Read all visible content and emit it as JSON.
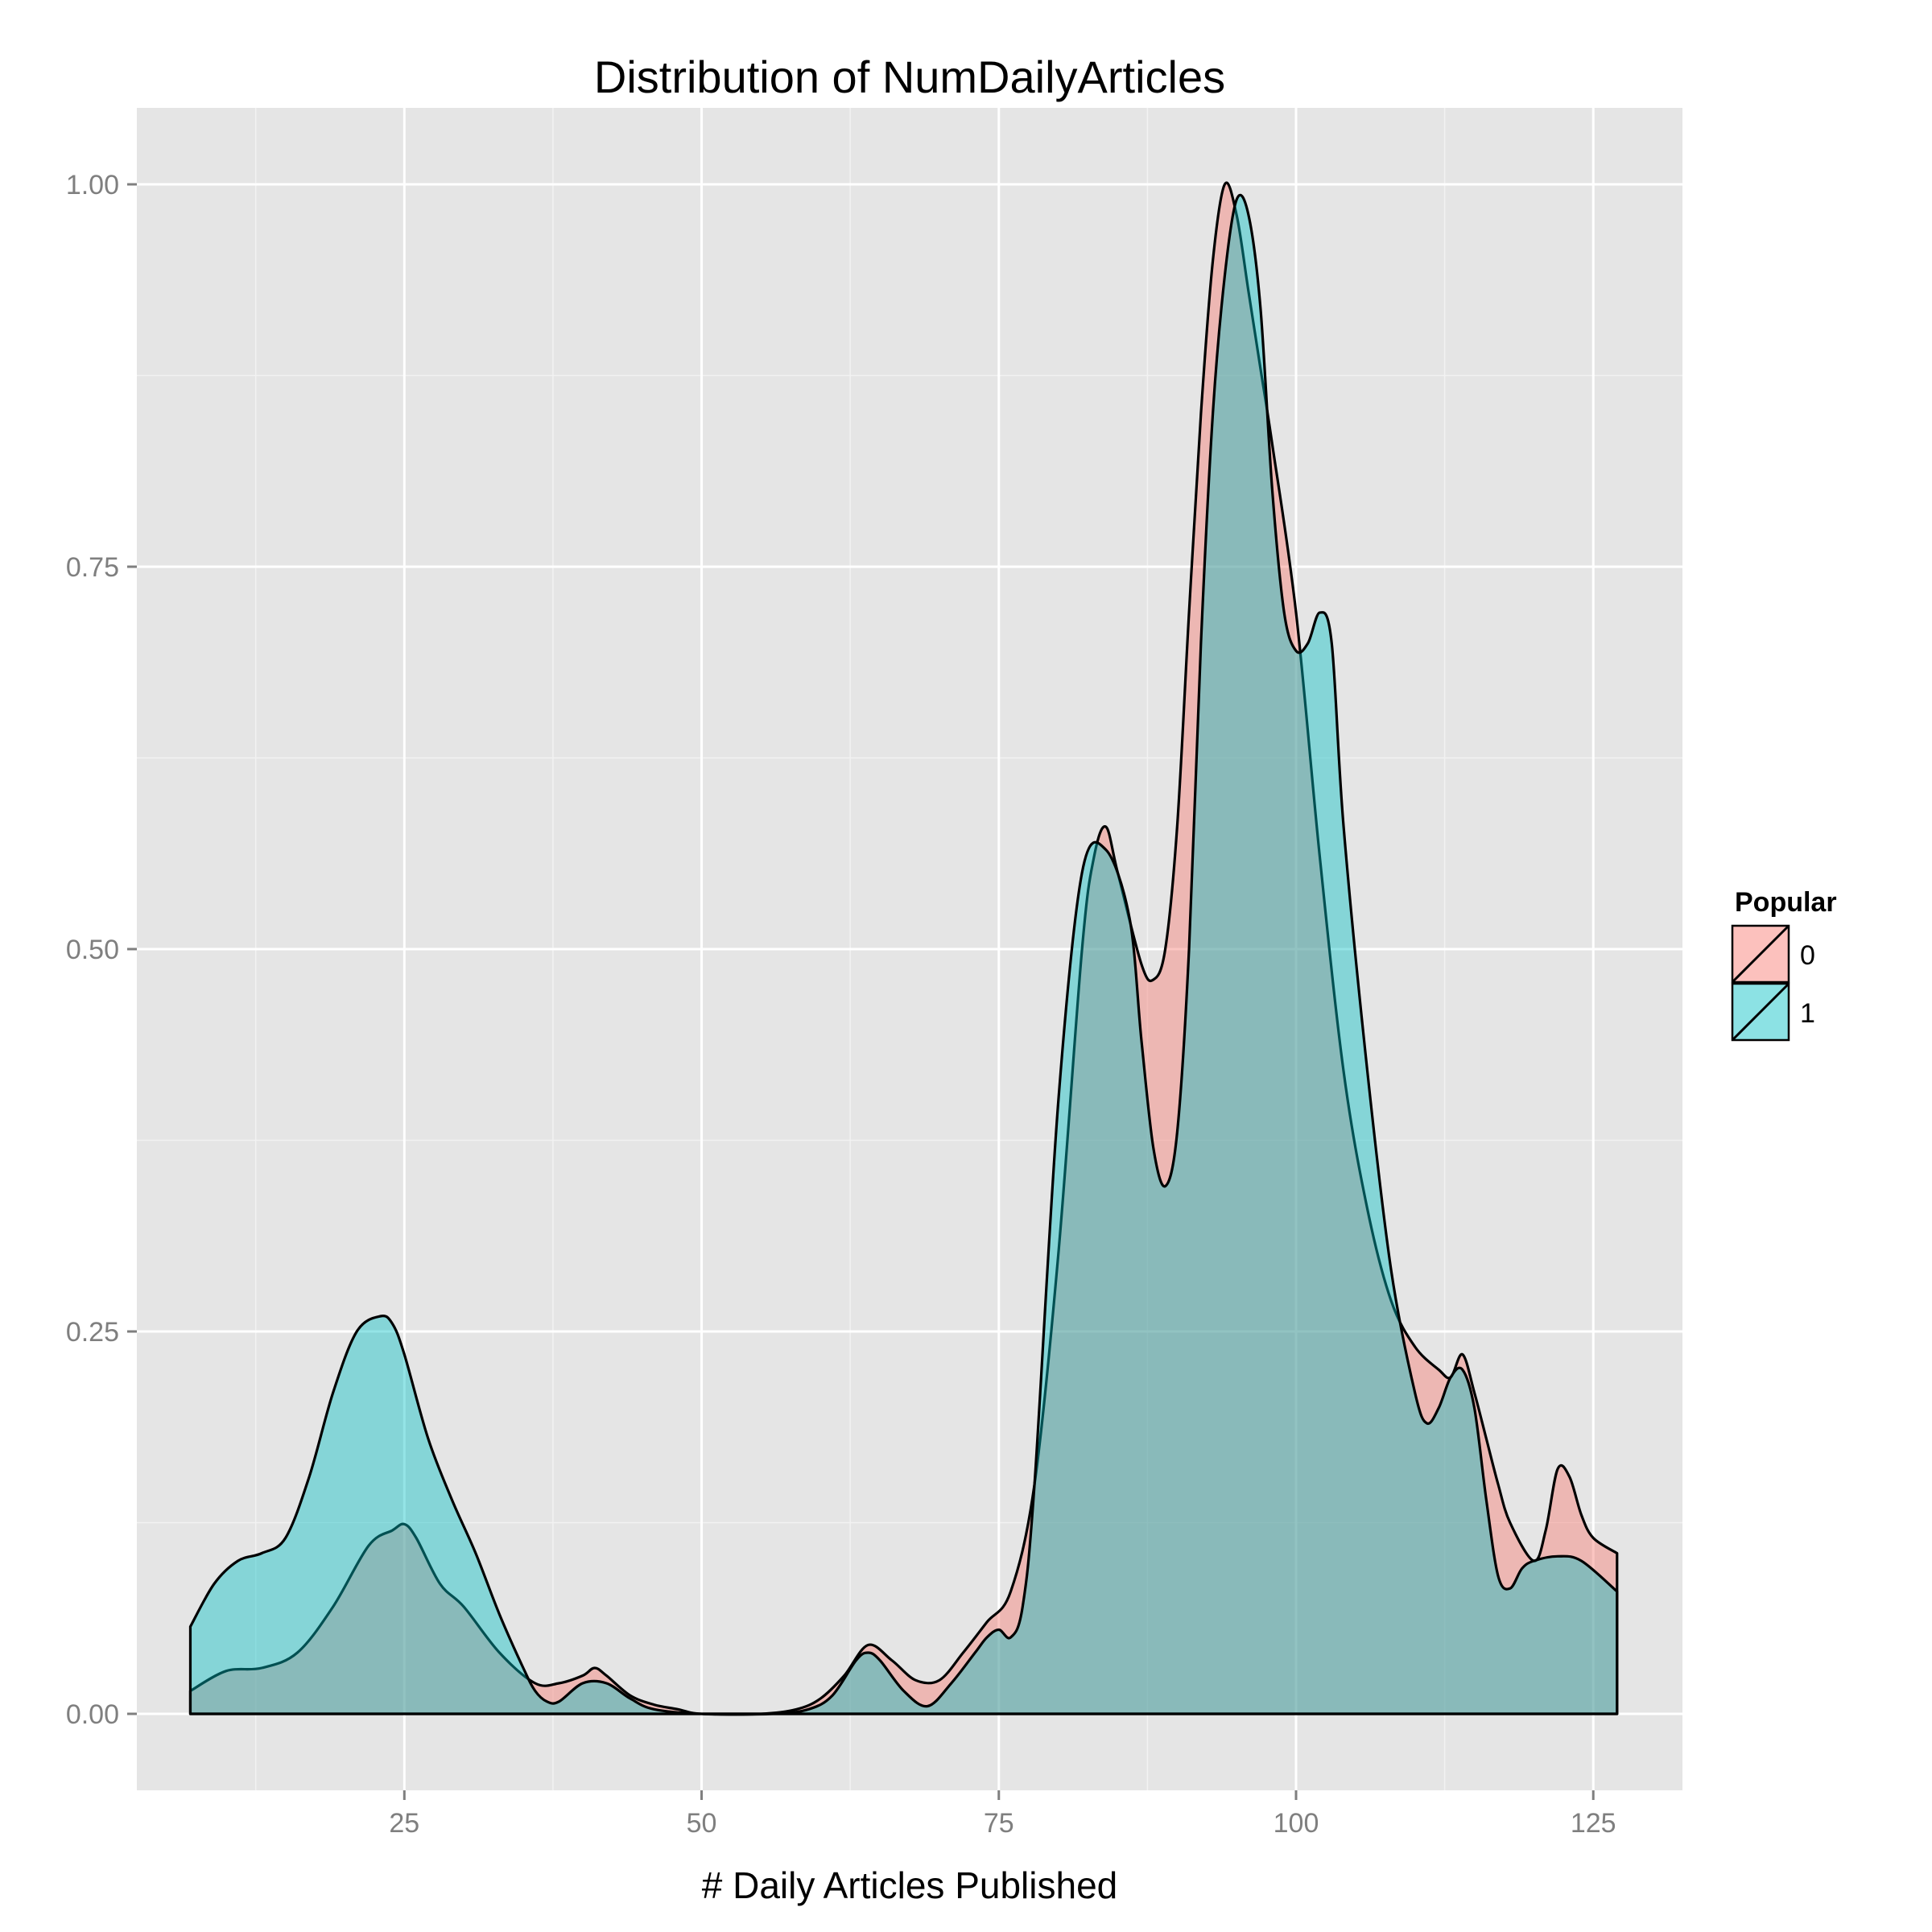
{
  "chart_data": {
    "type": "area",
    "title": "Distribution of NumDailyArticles",
    "xlabel": "# Daily Articles Published",
    "ylabel": "",
    "xlim": [
      2.5,
      132.5
    ],
    "ylim": [
      -0.05,
      1.05
    ],
    "x_ticks": [
      25,
      50,
      75,
      100,
      125
    ],
    "x_tick_labels": [
      "25",
      "50",
      "75",
      "100",
      "125"
    ],
    "x_minor_ticks": [
      12.5,
      37.5,
      62.5,
      87.5,
      112.5
    ],
    "y_ticks": [
      0,
      0.25,
      0.5,
      0.75,
      1.0
    ],
    "y_tick_labels": [
      "0.00",
      "0.25",
      "0.50",
      "0.75",
      "1.00"
    ],
    "y_minor_ticks": [
      0.125,
      0.375,
      0.625,
      0.875
    ],
    "grid": true,
    "legend": {
      "title": "Popular",
      "position": "right"
    },
    "series": [
      {
        "name": "0",
        "color": "#F8766D",
        "x": [
          7,
          10,
          13,
          16,
          19,
          22,
          24,
          25,
          26,
          28,
          30,
          33,
          36,
          38,
          40,
          41,
          42,
          44,
          46,
          48,
          50,
          55,
          58,
          60,
          62,
          64,
          66,
          68,
          70,
          72,
          74,
          76,
          78,
          80,
          82,
          83,
          84,
          85,
          87,
          88,
          89,
          90,
          91,
          92,
          93,
          94,
          95,
          96,
          97,
          98,
          100,
          102,
          104,
          106,
          108,
          110,
          112,
          113,
          114,
          115,
          116,
          117,
          118,
          120,
          121,
          122,
          123,
          124,
          125,
          127
        ],
        "y": [
          0.015,
          0.028,
          0.03,
          0.04,
          0.07,
          0.11,
          0.12,
          0.124,
          0.115,
          0.085,
          0.07,
          0.04,
          0.02,
          0.02,
          0.025,
          0.03,
          0.025,
          0.012,
          0.006,
          0.003,
          0.0,
          0.0,
          0.003,
          0.01,
          0.025,
          0.045,
          0.035,
          0.022,
          0.022,
          0.04,
          0.06,
          0.08,
          0.15,
          0.3,
          0.5,
          0.56,
          0.58,
          0.55,
          0.49,
          0.48,
          0.5,
          0.58,
          0.72,
          0.85,
          0.95,
          1.0,
          0.98,
          0.93,
          0.88,
          0.83,
          0.72,
          0.56,
          0.42,
          0.33,
          0.27,
          0.24,
          0.225,
          0.22,
          0.235,
          0.21,
          0.18,
          0.15,
          0.125,
          0.1,
          0.12,
          0.16,
          0.155,
          0.13,
          0.115,
          0.105
        ]
      },
      {
        "name": "1",
        "color": "#00BFC4",
        "x": [
          7,
          9,
          11,
          13,
          15,
          17,
          19,
          21,
          23,
          24,
          25,
          27,
          29,
          31,
          33,
          35,
          36,
          37,
          38,
          40,
          42,
          44,
          46,
          50,
          56,
          59,
          61,
          63,
          64,
          65,
          67,
          69,
          71,
          73,
          74,
          75,
          76,
          77,
          78,
          80,
          82,
          84,
          86,
          87,
          88,
          89,
          90,
          91,
          92,
          93,
          94,
          95,
          96,
          97,
          98,
          99,
          100,
          101,
          102,
          103,
          104,
          106,
          108,
          110,
          111,
          112,
          113,
          114,
          115,
          116,
          117,
          118,
          119,
          120,
          122,
          124,
          127
        ],
        "y": [
          0.057,
          0.085,
          0.1,
          0.105,
          0.115,
          0.155,
          0.21,
          0.25,
          0.26,
          0.255,
          0.235,
          0.18,
          0.14,
          0.105,
          0.065,
          0.03,
          0.015,
          0.008,
          0.008,
          0.02,
          0.02,
          0.01,
          0.003,
          0.0,
          0.0,
          0.003,
          0.012,
          0.035,
          0.04,
          0.035,
          0.015,
          0.005,
          0.02,
          0.04,
          0.05,
          0.055,
          0.05,
          0.07,
          0.15,
          0.4,
          0.55,
          0.565,
          0.52,
          0.44,
          0.37,
          0.345,
          0.38,
          0.5,
          0.7,
          0.85,
          0.94,
          0.99,
          0.98,
          0.92,
          0.8,
          0.72,
          0.695,
          0.7,
          0.72,
          0.7,
          0.58,
          0.42,
          0.29,
          0.21,
          0.19,
          0.2,
          0.22,
          0.225,
          0.2,
          0.14,
          0.09,
          0.082,
          0.095,
          0.1,
          0.103,
          0.1,
          0.08
        ]
      }
    ]
  }
}
